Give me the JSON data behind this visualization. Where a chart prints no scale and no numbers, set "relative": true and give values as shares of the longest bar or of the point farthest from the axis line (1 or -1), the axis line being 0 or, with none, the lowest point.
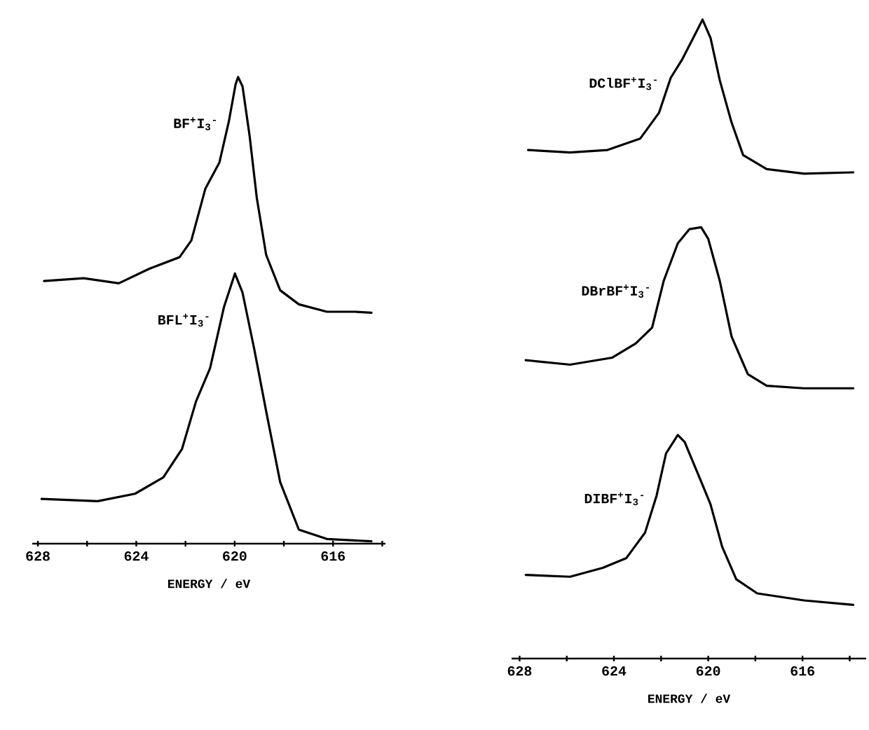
{
  "chart_data": [
    {
      "type": "line",
      "relative": true,
      "xlabel": "ENERGY / eV",
      "xlim": [
        628.23,
        613.87
      ],
      "xticks": [
        628,
        {
          "value": 626,
          "label": null
        },
        624,
        {
          "value": 622,
          "label": null
        },
        620,
        {
          "value": 618,
          "label": null
        },
        616,
        {
          "value": 614,
          "label": null
        }
      ],
      "series": [
        {
          "name": "BF$^{+}$I$_{3}$$^{-}$",
          "color": "#000000",
          "x": [
            627.75,
            626.14,
            624.71,
            623.48,
            622.24,
            621.76,
            621.19,
            620.62,
            620.24,
            619.96,
            619.86,
            619.68,
            619.39,
            619.1,
            618.72,
            618.15,
            617.39,
            616.25,
            615.11,
            614.44
          ],
          "values": [
            0.563,
            0.569,
            0.558,
            0.589,
            0.614,
            0.65,
            0.761,
            0.817,
            0.904,
            0.985,
            1.0,
            0.98,
            0.873,
            0.741,
            0.619,
            0.543,
            0.513,
            0.497,
            0.497,
            0.495
          ]
        },
        {
          "name": "BFL$^{+}$I$_{3}$$^{-}$",
          "color": "#000000",
          "x": [
            627.85,
            625.57,
            624.05,
            622.9,
            622.14,
            621.57,
            621.0,
            620.43,
            620.05,
            619.99,
            619.68,
            619.2,
            618.72,
            618.15,
            617.39,
            616.25,
            614.44
          ],
          "values": [
            0.096,
            0.091,
            0.107,
            0.142,
            0.203,
            0.305,
            0.376,
            0.508,
            0.569,
            0.579,
            0.538,
            0.416,
            0.284,
            0.132,
            0.03,
            0.01,
            0.005
          ]
        }
      ]
    },
    {
      "type": "line",
      "relative": true,
      "xlabel": "ENERGY / eV",
      "xlim": [
        628.34,
        613.3
      ],
      "xticks": [
        628,
        {
          "value": 626,
          "label": null
        },
        624,
        {
          "value": 622,
          "label": null
        },
        620,
        {
          "value": 618,
          "label": null
        },
        616,
        {
          "value": 614,
          "label": null
        }
      ],
      "series": [
        {
          "name": "DClBF$^{+}$I$_{3}$$^{-}$",
          "color": "#000000",
          "x": [
            627.64,
            625.86,
            624.27,
            622.88,
            622.09,
            621.59,
            621.1,
            620.6,
            620.24,
            619.9,
            619.51,
            619.01,
            618.52,
            617.52,
            615.94,
            613.85
          ],
          "values": [
            0.796,
            0.792,
            0.796,
            0.814,
            0.854,
            0.909,
            0.938,
            0.974,
            1.0,
            0.971,
            0.905,
            0.839,
            0.788,
            0.766,
            0.759,
            0.761
          ]
        },
        {
          "name": "DBrBF$^{+}$I$_{3}$$^{-}$",
          "color": "#000000",
          "x": [
            627.74,
            625.86,
            624.07,
            623.08,
            622.38,
            621.89,
            621.29,
            620.8,
            620.3,
            620.0,
            619.51,
            619.01,
            618.32,
            617.52,
            615.94,
            613.85
          ],
          "values": [
            0.467,
            0.46,
            0.471,
            0.493,
            0.518,
            0.591,
            0.65,
            0.672,
            0.675,
            0.657,
            0.591,
            0.504,
            0.445,
            0.427,
            0.423,
            0.423
          ]
        },
        {
          "name": "DIBF$^{+}$I$_{3}$$^{-}$",
          "color": "#000000",
          "x": [
            627.74,
            625.86,
            624.47,
            623.48,
            622.68,
            622.19,
            621.79,
            621.29,
            621.0,
            620.3,
            619.9,
            619.41,
            618.81,
            617.92,
            615.94,
            613.85
          ],
          "values": [
            0.131,
            0.128,
            0.142,
            0.157,
            0.197,
            0.255,
            0.321,
            0.35,
            0.339,
            0.277,
            0.241,
            0.175,
            0.124,
            0.102,
            0.091,
            0.084
          ]
        }
      ]
    }
  ]
}
